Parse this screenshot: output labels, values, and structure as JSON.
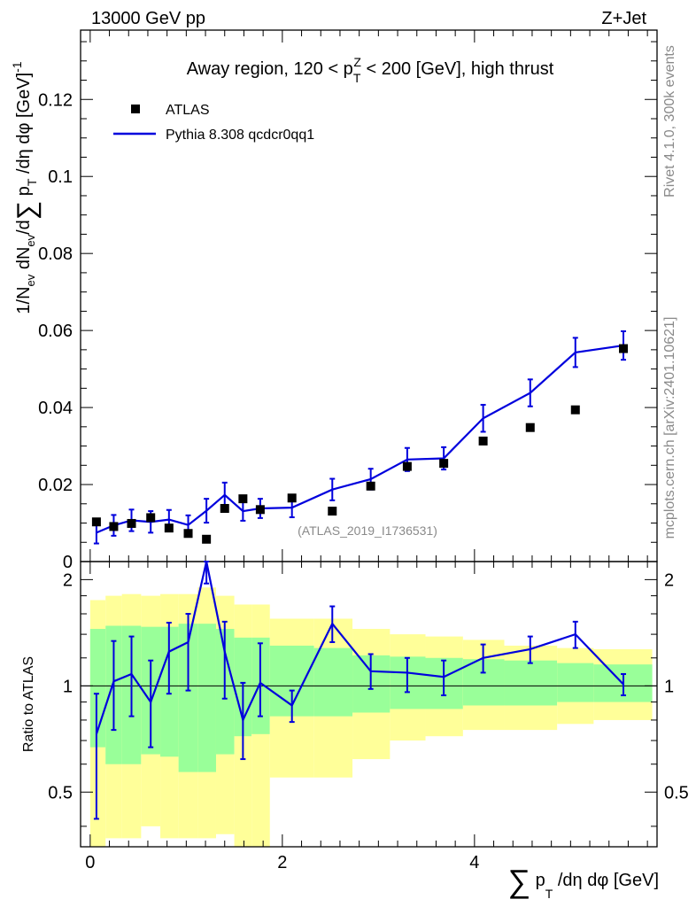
{
  "header": {
    "beam_label": "13000 GeV pp",
    "process_label": "Z+Jet"
  },
  "side_labels": {
    "rivet": "Rivet 4.1.0,  300k events",
    "mcplots": "mcplots.cern.ch [arXiv:2401.10621]"
  },
  "colors": {
    "mc_line": "#0000dd",
    "data_marker": "#000000",
    "band_outer": "#ffff99",
    "band_inner": "#99ff99"
  },
  "chart_data": [
    {
      "type": "line",
      "title": "Away region, 120 < p_T^Z < 200 [GeV], high thrust",
      "analysis_label": "(ATLAS_2019_I1736531)",
      "ylabel": "1/N_ev dN_ev/d∑p_T/dη dφ [GeV]^-1",
      "xlabel": "∑p_T/dη dφ [GeV]",
      "xlim": [
        -0.1,
        5.9
      ],
      "ylim": [
        0,
        0.138
      ],
      "y_ticks": [
        0,
        0.02,
        0.04,
        0.06,
        0.08,
        0.1,
        0.12
      ],
      "y_tick_labels": [
        "0",
        "0.02",
        "0.04",
        "0.06",
        "0.08",
        "0.1",
        "0.12"
      ],
      "legend": [
        "ATLAS",
        "Pythia 8.308 qcdcr0qq1"
      ],
      "series": [
        {
          "name": "ATLAS",
          "x": [
            0.065,
            0.245,
            0.43,
            0.63,
            0.82,
            1.02,
            1.21,
            1.4,
            1.59,
            1.77,
            2.1,
            2.52,
            2.92,
            3.3,
            3.68,
            4.09,
            4.58,
            5.05,
            5.55
          ],
          "y": [
            0.0103,
            0.0091,
            0.0099,
            0.0114,
            0.0087,
            0.0073,
            0.0058,
            0.0138,
            0.0163,
            0.0135,
            0.0165,
            0.0131,
            0.0196,
            0.0247,
            0.0255,
            0.0313,
            0.0348,
            0.0394,
            0.0553
          ]
        },
        {
          "name": "Pythia 8.308 qcdcr0qq1",
          "x": [
            0.065,
            0.245,
            0.43,
            0.63,
            0.82,
            1.02,
            1.21,
            1.4,
            1.59,
            1.77,
            2.1,
            2.52,
            2.92,
            3.3,
            3.68,
            4.09,
            4.58,
            5.05,
            5.55
          ],
          "y": [
            0.0075,
            0.0094,
            0.0107,
            0.0103,
            0.0109,
            0.0095,
            0.0132,
            0.0173,
            0.0131,
            0.0138,
            0.014,
            0.0187,
            0.0214,
            0.0265,
            0.0268,
            0.0372,
            0.0438,
            0.0543,
            0.0561
          ],
          "err": [
            0.0028,
            0.0027,
            0.0028,
            0.0028,
            0.0025,
            0.0025,
            0.0031,
            0.0032,
            0.0025,
            0.0025,
            0.0025,
            0.0028,
            0.0027,
            0.003,
            0.0029,
            0.0035,
            0.0035,
            0.0038,
            0.0037
          ]
        }
      ]
    },
    {
      "type": "line",
      "ylabel": "Ratio to ATLAS",
      "xlim": [
        -0.1,
        5.9
      ],
      "ylim": [
        0.35,
        2.25
      ],
      "y_scale": "log",
      "y_ticks": [
        0.5,
        1,
        2
      ],
      "y_tick_labels": [
        "0.5",
        "1",
        "2"
      ],
      "x_ticks": [
        0,
        2,
        4
      ],
      "x_tick_labels": [
        "0",
        "2",
        "4"
      ],
      "reference_line": 1,
      "bins": [
        [
          0.0,
          0.16
        ],
        [
          0.16,
          0.33
        ],
        [
          0.33,
          0.53
        ],
        [
          0.53,
          0.73
        ],
        [
          0.73,
          0.92
        ],
        [
          0.92,
          1.12
        ],
        [
          1.12,
          1.31
        ],
        [
          1.31,
          1.5
        ],
        [
          1.5,
          1.68
        ],
        [
          1.68,
          1.87
        ],
        [
          1.87,
          2.33
        ],
        [
          2.33,
          2.73
        ],
        [
          2.73,
          3.12
        ],
        [
          3.12,
          3.49
        ],
        [
          3.49,
          3.88
        ],
        [
          3.88,
          4.31
        ],
        [
          4.31,
          4.86
        ],
        [
          4.86,
          5.24
        ],
        [
          5.24,
          5.85
        ]
      ],
      "band_outer": {
        "low": [
          0.35,
          0.37,
          0.37,
          0.4,
          0.37,
          0.37,
          0.37,
          0.38,
          0.35,
          0.35,
          0.55,
          0.55,
          0.62,
          0.7,
          0.72,
          0.75,
          0.75,
          0.78,
          0.8
        ],
        "high": [
          1.75,
          1.8,
          1.82,
          1.8,
          1.82,
          1.82,
          1.9,
          1.8,
          1.7,
          1.7,
          1.55,
          1.55,
          1.45,
          1.4,
          1.38,
          1.35,
          1.3,
          1.28,
          1.27
        ]
      },
      "band_inner": {
        "low": [
          0.67,
          0.6,
          0.6,
          0.64,
          0.63,
          0.57,
          0.57,
          0.64,
          0.72,
          0.73,
          0.82,
          0.82,
          0.84,
          0.86,
          0.86,
          0.88,
          0.88,
          0.9,
          0.9
        ],
        "high": [
          1.45,
          1.48,
          1.48,
          1.47,
          1.47,
          1.5,
          1.5,
          1.45,
          1.37,
          1.37,
          1.3,
          1.28,
          1.22,
          1.21,
          1.2,
          1.19,
          1.18,
          1.16,
          1.15
        ]
      },
      "series": [
        {
          "name": "Pythia 8.308 qcdcr0qq1",
          "x": [
            0.065,
            0.245,
            0.43,
            0.63,
            0.82,
            1.02,
            1.21,
            1.4,
            1.59,
            1.77,
            2.1,
            2.52,
            2.92,
            3.3,
            3.68,
            4.09,
            4.58,
            5.05,
            5.55
          ],
          "y": [
            0.73,
            1.03,
            1.08,
            0.9,
            1.25,
            1.33,
            2.27,
            1.25,
            0.8,
            1.02,
            0.88,
            1.5,
            1.1,
            1.09,
            1.06,
            1.2,
            1.27,
            1.4,
            1.01
          ],
          "y_lo": [
            0.42,
            0.75,
            0.82,
            0.67,
            0.95,
            0.97,
            1.95,
            0.92,
            0.62,
            0.82,
            0.79,
            1.33,
            0.98,
            0.96,
            0.94,
            1.09,
            1.16,
            1.28,
            0.94
          ],
          "y_hi": [
            0.95,
            1.34,
            1.38,
            1.18,
            1.51,
            1.6,
            2.27,
            1.52,
            1.02,
            1.32,
            0.97,
            1.68,
            1.23,
            1.2,
            1.18,
            1.31,
            1.38,
            1.52,
            1.08
          ]
        }
      ]
    }
  ]
}
